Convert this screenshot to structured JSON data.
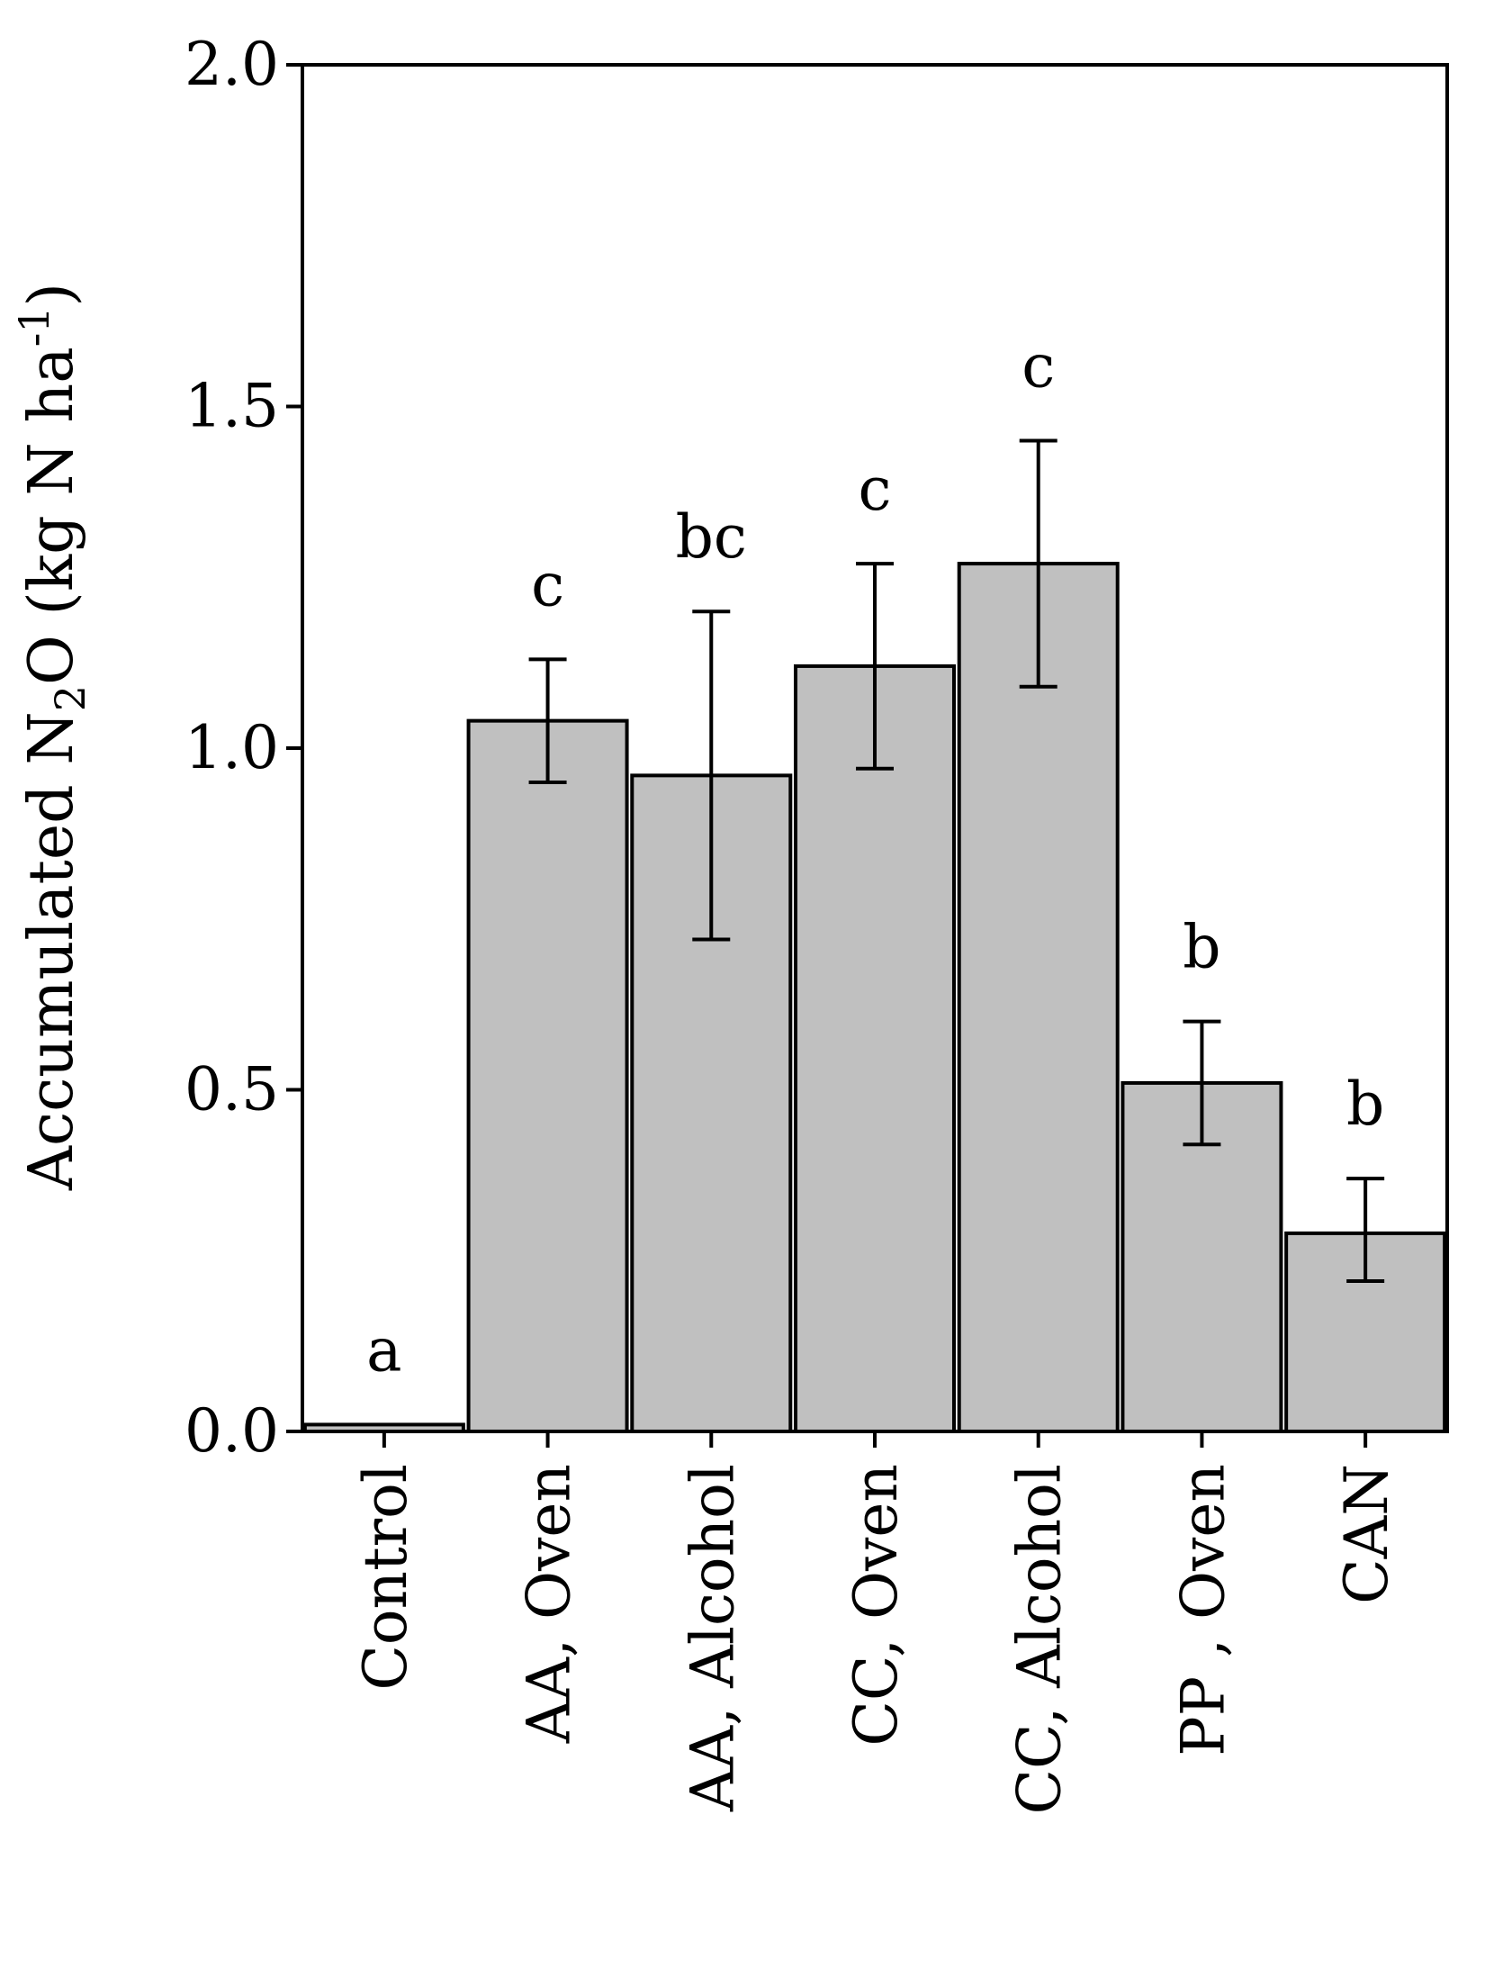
{
  "chart_data": {
    "type": "bar",
    "title": "",
    "xlabel": "",
    "ylabel": {
      "prefix": "Accumulated N",
      "sub": "2",
      "middle": "O (kg N ha",
      "sup": "-1",
      "suffix": ")"
    },
    "ylim": [
      0,
      2.0
    ],
    "yticks": [
      0.0,
      0.5,
      1.0,
      1.5,
      2.0
    ],
    "ytick_labels": [
      "0.0",
      "0.5",
      "1.0",
      "1.5",
      "2.0"
    ],
    "categories": [
      "Control",
      "AA, Oven",
      "AA, Alcohol",
      "CC, Oven",
      "CC, Alcohol",
      "PP , Oven",
      "CAN"
    ],
    "values": [
      0.01,
      1.04,
      0.96,
      1.12,
      1.27,
      0.51,
      0.29
    ],
    "error_low": [
      null,
      0.95,
      0.72,
      0.97,
      1.09,
      0.42,
      0.22
    ],
    "error_high": [
      null,
      1.13,
      1.2,
      1.27,
      1.45,
      0.6,
      0.37
    ],
    "significance": [
      "a",
      "c",
      "bc",
      "c",
      "c",
      "b",
      "b"
    ],
    "bar_color": "#c0c0c0",
    "grid": false,
    "legend": "none"
  }
}
